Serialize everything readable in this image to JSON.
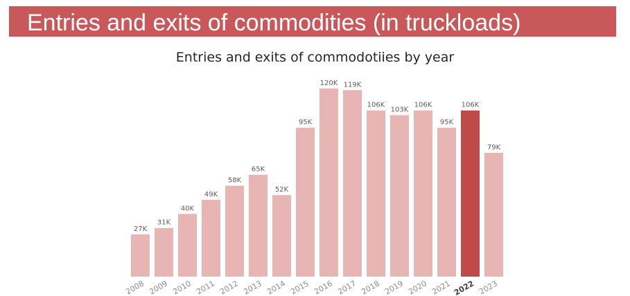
{
  "header": {
    "title": "Entries and exits of commodities (in truckloads)"
  },
  "colors": {
    "banner": "#c9585a",
    "bar": "#e6b5b4",
    "bar_highlight": "#c0494a"
  },
  "chart_data": {
    "type": "bar",
    "title": "Entries and exits of commodotiies by year",
    "xlabel": "",
    "ylabel": "",
    "ylim": [
      0,
      120000
    ],
    "grid": false,
    "highlight_category": "2022",
    "categories": [
      "2008",
      "2009",
      "2010",
      "2011",
      "2012",
      "2013",
      "2014",
      "2015",
      "2016",
      "2017",
      "2018",
      "2019",
      "2020",
      "2021",
      "2022",
      "2023"
    ],
    "values": [
      27000,
      31000,
      40000,
      49000,
      58000,
      65000,
      52000,
      95000,
      120000,
      119000,
      106000,
      103000,
      106000,
      95000,
      106000,
      79000
    ],
    "data_labels": [
      "27K",
      "31K",
      "40K",
      "49K",
      "58K",
      "65K",
      "52K",
      "95K",
      "120K",
      "119K",
      "106K",
      "103K",
      "106K",
      "95K",
      "106K",
      "79K"
    ]
  }
}
